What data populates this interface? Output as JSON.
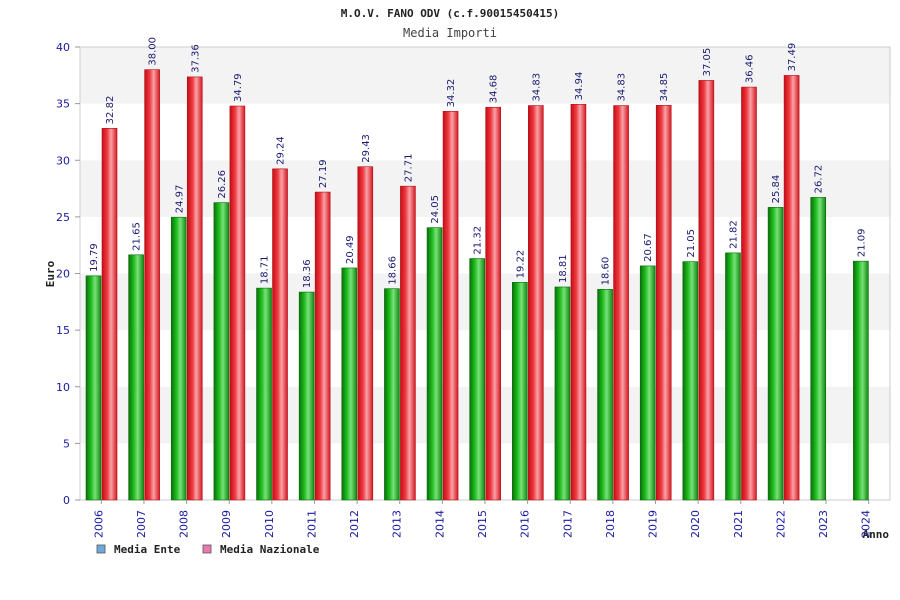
{
  "chart_data": {
    "type": "bar",
    "title": "M.O.V. FANO ODV (c.f.90015450415)",
    "subtitle": "Media Importi",
    "xlabel": "Anno",
    "ylabel": "Euro",
    "ylim": [
      0,
      40
    ],
    "yticks": [
      "0",
      "5",
      "10",
      "15",
      "20",
      "25",
      "30",
      "35",
      "40"
    ],
    "grid": true,
    "legend_position": "bottom-left",
    "categories": [
      "2006",
      "2007",
      "2008",
      "2009",
      "2010",
      "2011",
      "2012",
      "2013",
      "2014",
      "2015",
      "2016",
      "2017",
      "2018",
      "2019",
      "2020",
      "2021",
      "2022",
      "2023",
      "2024"
    ],
    "series": [
      {
        "name": "Media Ente",
        "values": [
          19.79,
          21.65,
          24.97,
          26.26,
          18.71,
          18.36,
          20.49,
          18.66,
          24.05,
          21.32,
          19.22,
          18.81,
          18.6,
          20.67,
          21.05,
          21.82,
          25.84,
          26.72,
          21.09
        ],
        "labels": [
          "19.79",
          "21.65",
          "24.97",
          "26.26",
          "18.71",
          "18.36",
          "20.49",
          "18.66",
          "24.05",
          "21.32",
          "19.22",
          "18.81",
          "18.60",
          "20.67",
          "21.05",
          "21.82",
          "25.84",
          "26.72",
          "21.09"
        ],
        "bar_color": "#1aa61a",
        "legend_color": "#6fa8dc"
      },
      {
        "name": "Media Nazionale",
        "values": [
          32.82,
          38.0,
          37.36,
          34.79,
          29.24,
          27.19,
          29.43,
          27.71,
          34.32,
          34.68,
          34.83,
          34.94,
          34.83,
          34.85,
          37.05,
          36.46,
          37.49,
          null,
          null
        ],
        "labels": [
          "32.82",
          "38.00",
          "37.36",
          "34.79",
          "29.24",
          "27.19",
          "29.43",
          "27.71",
          "34.32",
          "34.68",
          "34.83",
          "34.94",
          "34.83",
          "34.85",
          "37.05",
          "36.46",
          "37.49",
          null,
          null
        ],
        "bar_color": "#e8202a",
        "legend_color": "#e87ab0"
      }
    ]
  }
}
